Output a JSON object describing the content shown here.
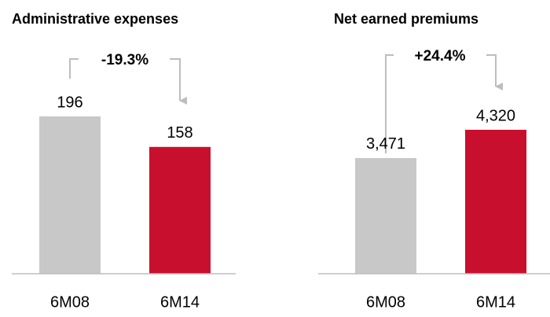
{
  "chart_data": [
    {
      "type": "bar",
      "title": "Administrative expenses",
      "annotation": "-19.3%",
      "categories": [
        "6M08",
        "6M14"
      ],
      "values": [
        196,
        158
      ],
      "colors": [
        "#c8c8c8",
        "#c8102e"
      ]
    },
    {
      "type": "bar",
      "title": "Net earned premiums",
      "annotation": "+24.4%",
      "categories": [
        "6M08",
        "6M14"
      ],
      "values": [
        3471,
        4320
      ],
      "value_labels": [
        "3,471",
        "4,320"
      ],
      "colors": [
        "#c8c8c8",
        "#c8102e"
      ]
    }
  ]
}
